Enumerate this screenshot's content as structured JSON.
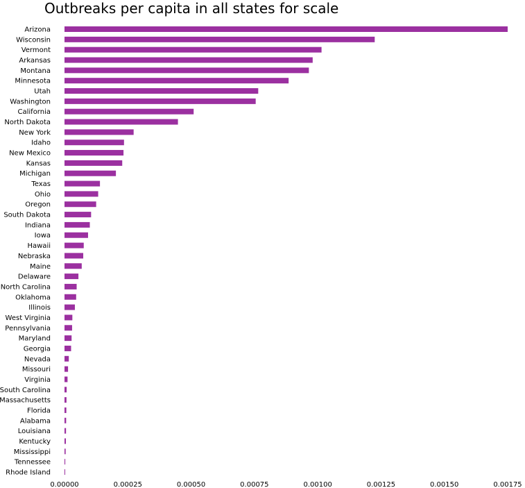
{
  "chart_data": {
    "type": "bar",
    "orientation": "horizontal",
    "title": "Outbreaks per capita in all states for scale",
    "xlabel": "",
    "ylabel": "",
    "xlim": [
      0,
      0.00178
    ],
    "grid": false,
    "legend": "none",
    "bar_color": "#9b30a0",
    "categories": [
      "Arizona",
      "Wisconsin",
      "Vermont",
      "Arkansas",
      "Montana",
      "Minnesota",
      "Utah",
      "Washington",
      "California",
      "North Dakota",
      "New York",
      "Idaho",
      "New Mexico",
      "Kansas",
      "Michigan",
      "Texas",
      "Ohio",
      "Oregon",
      "South Dakota",
      "Indiana",
      "Iowa",
      "Hawaii",
      "Nebraska",
      "Maine",
      "Delaware",
      "North Carolina",
      "Oklahoma",
      "Illinois",
      "West Virginia",
      "Pennsylvania",
      "Maryland",
      "Georgia",
      "Nevada",
      "Missouri",
      "Virginia",
      "South Carolina",
      "Massachusetts",
      "Florida",
      "Alabama",
      "Louisiana",
      "Kentucky",
      "Mississippi",
      "Tennessee",
      "Rhode Island"
    ],
    "values": [
      0.00175,
      0.001225,
      0.001015,
      0.00098,
      0.000965,
      0.000885,
      0.000765,
      0.000755,
      0.00051,
      0.000448,
      0.000273,
      0.000235,
      0.000233,
      0.000228,
      0.000203,
      0.00014,
      0.000133,
      0.000125,
      0.000105,
      0.0001,
      9.3e-05,
      7.6e-05,
      7.4e-05,
      6.8e-05,
      5.5e-05,
      4.8e-05,
      4.6e-05,
      4.1e-05,
      3.1e-05,
      3e-05,
      2.8e-05,
      2.6e-05,
      1.7e-05,
      1.4e-05,
      1.2e-05,
      8.5e-06,
      7.8e-06,
      7.2e-06,
      6.5e-06,
      6e-06,
      5.5e-06,
      4.5e-06,
      3e-06,
      2.5e-06
    ],
    "xticks": [
      0.0,
      0.00025,
      0.0005,
      0.00075,
      0.001,
      0.00125,
      0.0015,
      0.00175
    ],
    "xtick_labels": [
      "0.00000",
      "0.00025",
      "0.00050",
      "0.00075",
      "0.00100",
      "0.00125",
      "0.00150",
      "0.00175"
    ]
  }
}
